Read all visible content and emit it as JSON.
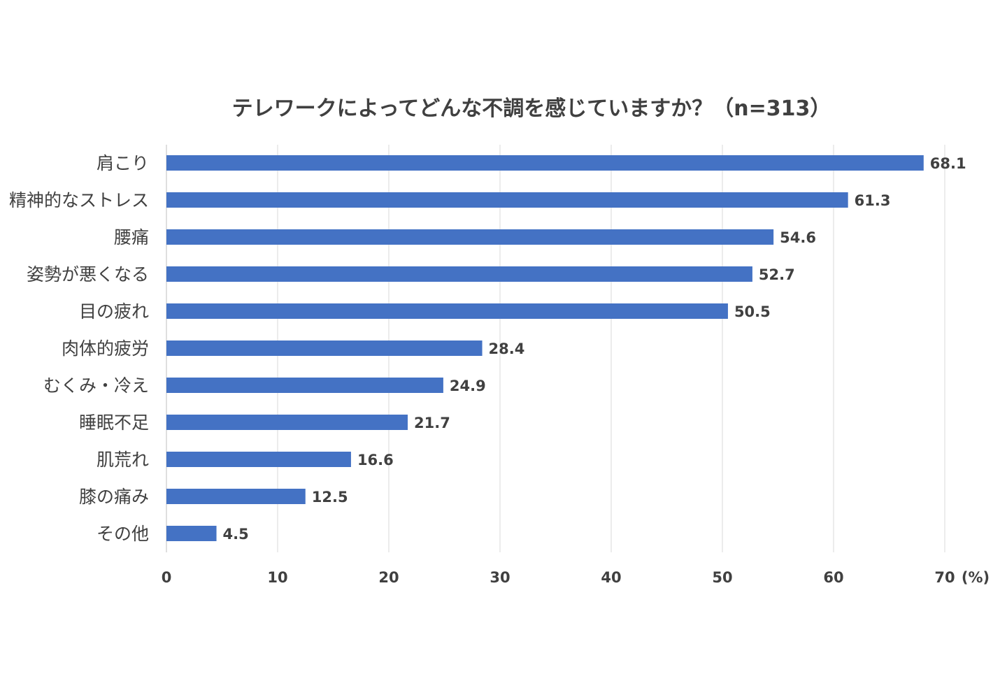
{
  "chart_data": {
    "type": "bar",
    "orientation": "horizontal",
    "title": "テレワークによってどんな不調を感じていますか？（n=313）",
    "unit_label": "(%)",
    "categories": [
      "肩こり",
      "精神的なストレス",
      "腰痛",
      "姿勢が悪くなる",
      "目の疲れ",
      "肉体的疲労",
      "むくみ・冷え",
      "睡眠不足",
      "肌荒れ",
      "膝の痛み",
      "その他"
    ],
    "values": [
      68.1,
      61.3,
      54.6,
      52.7,
      50.5,
      28.4,
      24.9,
      21.7,
      16.6,
      12.5,
      4.5
    ],
    "value_labels": [
      "68.1",
      "61.3",
      "54.6",
      "52.7",
      "50.5",
      "28.4",
      "24.9",
      "21.7",
      "16.6",
      "12.5",
      "4.5"
    ],
    "xlim": [
      0,
      70
    ],
    "x_ticks": [
      "0",
      "10",
      "20",
      "30",
      "40",
      "50",
      "60",
      "70"
    ],
    "grid": "vertical",
    "legend": "none",
    "colors": {
      "bar": "#4472C4",
      "text": "#404040",
      "grid": "#D9D9D9",
      "axis": "#BFBFBF"
    }
  }
}
